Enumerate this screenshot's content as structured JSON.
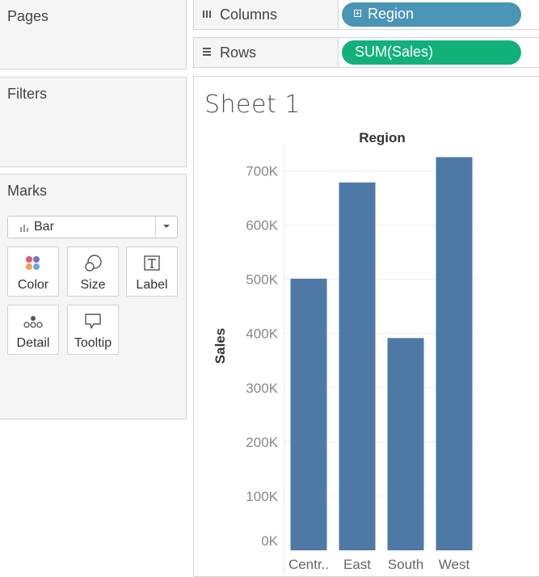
{
  "left_panel": {
    "pages_title": "Pages",
    "filters_title": "Filters",
    "marks_title": "Marks",
    "mark_type": "Bar",
    "mark_buttons": {
      "color": "Color",
      "size": "Size",
      "label": "Label",
      "detail": "Detail",
      "tooltip": "Tooltip"
    }
  },
  "shelves": {
    "columns": {
      "label": "Columns",
      "pill": "Region",
      "pill_color": "#4a94b5"
    },
    "rows": {
      "label": "Rows",
      "pill": "SUM(Sales)",
      "pill_color": "#12b17a"
    }
  },
  "sheet": {
    "title": "Sheet 1"
  },
  "chart_data": {
    "type": "bar",
    "title": "Region",
    "ylabel": "Sales",
    "xlabel": "",
    "categories": [
      "Centr..",
      "East",
      "South",
      "West"
    ],
    "values": [
      501240,
      678781,
      391722,
      725458
    ],
    "ylim": [
      0,
      750000
    ],
    "yticks": [
      0,
      100000,
      200000,
      300000,
      400000,
      500000,
      600000,
      700000
    ],
    "ytick_labels": [
      "0K",
      "100K",
      "200K",
      "300K",
      "400K",
      "500K",
      "600K",
      "700K"
    ],
    "bar_color": "#4e79a7",
    "grid": true
  }
}
